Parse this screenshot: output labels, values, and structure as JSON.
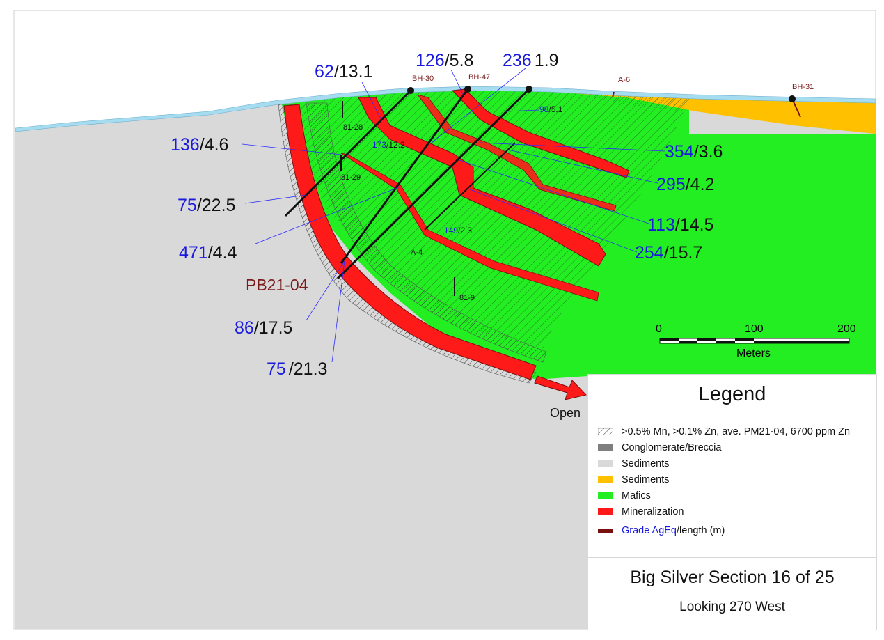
{
  "drill_holes": [
    "BH-30",
    "BH-47",
    "A-6",
    "BH-31",
    "81-28",
    "81-29",
    "A-4",
    "81-9",
    "PB21-04"
  ],
  "grade_labels": [
    {
      "grade": "62",
      "length": "/13.1"
    },
    {
      "grade": "126",
      "length": "/5.8"
    },
    {
      "grade": "236",
      "length": "1.9"
    },
    {
      "grade": "136",
      "length": "/4.6"
    },
    {
      "grade": "75",
      "length": "/22.5"
    },
    {
      "grade": "471",
      "length": "/4.4"
    },
    {
      "grade": "86",
      "length": "/17.5"
    },
    {
      "grade": "75",
      "length": "/21.3"
    },
    {
      "grade": "354",
      "length": "/3.6"
    },
    {
      "grade": "295",
      "length": "/4.2"
    },
    {
      "grade": "113",
      "length": "/14.5"
    },
    {
      "grade": "254",
      "length": "/15.7"
    },
    {
      "grade": "98",
      "length": "/5.1"
    },
    {
      "grade": "173",
      "length": "/12.2"
    },
    {
      "grade": "149",
      "length": "/2.3"
    }
  ],
  "open_label": "Open",
  "scale": {
    "ticks": [
      "0",
      "100",
      "200"
    ],
    "unit": "Meters"
  },
  "legend": {
    "title": "Legend",
    "items": [
      {
        "label": ">0.5% Mn, >0.1% Zn, ave. PM21-04, 6700 ppm Zn",
        "color": "hatch"
      },
      {
        "label": "Conglomerate/Breccia",
        "color": "#7f7f7f"
      },
      {
        "label": "Sediments",
        "color": "#d9d9d9"
      },
      {
        "label": "Sediments",
        "color": "#ffc000"
      },
      {
        "label": "Mafics",
        "color": "#22ee22"
      },
      {
        "label": "Mineralization",
        "color": "#ff1a1a"
      }
    ],
    "grade_key": {
      "grade": "Grade AgEq",
      "length": "/length (m)",
      "color": "#7a0f0f"
    }
  },
  "section_title": "Big Silver Section 16 of 25",
  "section_subtitle": "Looking 270 West",
  "colors": {
    "grade": "#1a1adf",
    "hole_label": "#7a1a1a",
    "sediments_grey": "#d9d9d9",
    "sediments_orange": "#ffc000",
    "mafics": "#22ee22",
    "mineralization": "#ff1a1a",
    "overburden": "#a6dcef"
  }
}
